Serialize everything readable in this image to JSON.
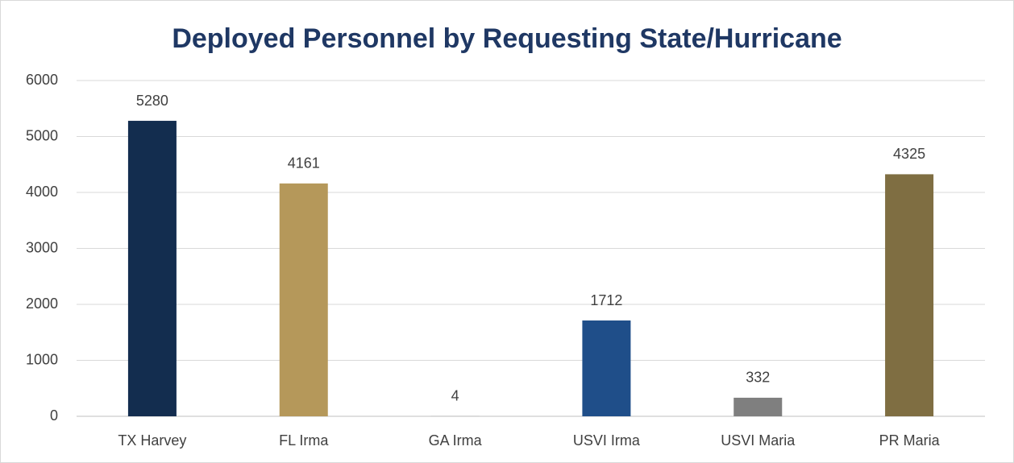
{
  "chart_data": {
    "type": "bar",
    "title": "Deployed Personnel by Requesting State/Hurricane",
    "categories": [
      "TX Harvey",
      "FL Irma",
      "GA Irma",
      "USVI Irma",
      "USVI Maria",
      "PR Maria"
    ],
    "values": [
      5280,
      4161,
      4,
      1712,
      332,
      4325
    ],
    "colors": [
      "#132d4f",
      "#b5985a",
      "#a5a5a5",
      "#1f4e89",
      "#7f7f7f",
      "#7f6e42"
    ],
    "ylim": [
      0,
      6000
    ],
    "yticks": [
      0,
      1000,
      2000,
      3000,
      4000,
      5000,
      6000
    ],
    "grid": true
  }
}
